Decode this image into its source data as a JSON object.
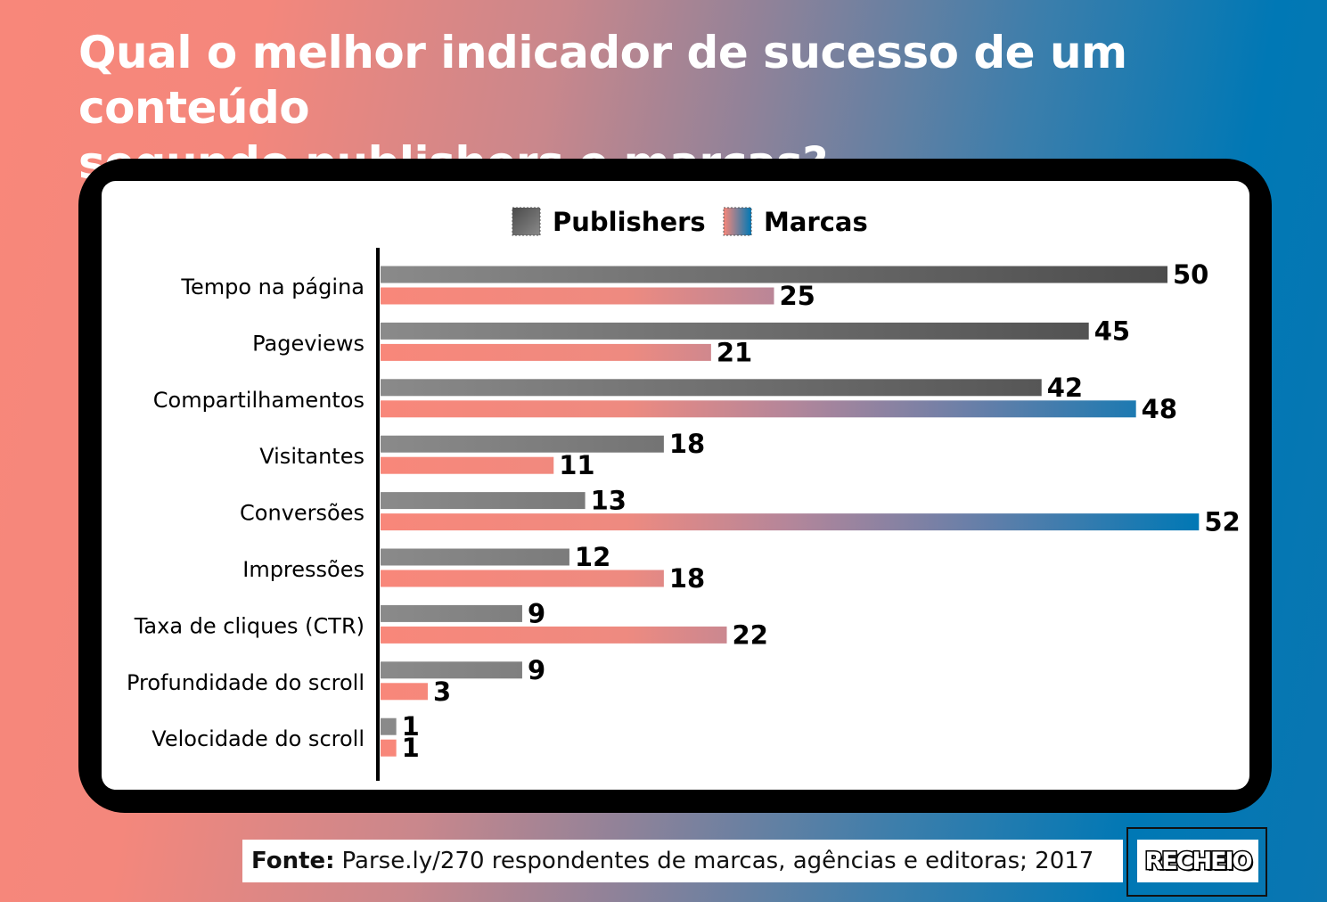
{
  "title_line1": "Qual o melhor indicador de sucesso de um conteúdo",
  "title_line2": "segundo publishers e marcas?",
  "footer": {
    "label": "Fonte:",
    "text": "Parse.ly/270 respondentes de marcas, agências e editoras; 2017"
  },
  "logo": "RECHEIO",
  "colors": {
    "publishers_start": "#8a8a8a",
    "publishers_end": "#4a4a4a",
    "marcas_start": "#f8877a",
    "marcas_end": "#0078b5"
  },
  "chart_data": {
    "type": "bar",
    "orientation": "horizontal",
    "categories": [
      "Tempo na página",
      "Pageviews",
      "Compartilhamentos",
      "Visitantes",
      "Conversões",
      "Impressões",
      "Taxa de cliques (CTR)",
      "Profundidade do scroll",
      "Velocidade do scroll"
    ],
    "series": [
      {
        "name": "Publishers",
        "values": [
          50,
          45,
          42,
          18,
          13,
          12,
          9,
          9,
          1
        ]
      },
      {
        "name": "Marcas",
        "values": [
          25,
          21,
          48,
          11,
          52,
          18,
          22,
          3,
          1
        ]
      }
    ],
    "xlim": [
      0,
      52
    ],
    "legend_position": "top-center",
    "grid": false,
    "data_labels": true
  }
}
